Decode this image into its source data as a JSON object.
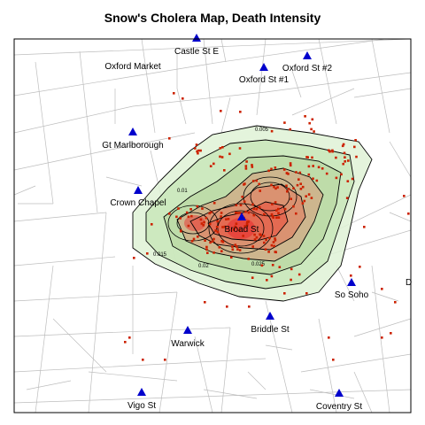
{
  "title": "Snow's Cholera Map, Death Intensity",
  "colors": {
    "street": "#bdbdbd",
    "frame": "#000000",
    "pump": "#0000cc",
    "death": "#cc2200",
    "contour": "#000000",
    "density_low": "#dff2d6",
    "density_high": "#e8403a"
  },
  "pump_icon": "triangle-icon",
  "pumps": [
    {
      "name": "Oxford Market",
      "label": "Oxford Market"
    },
    {
      "name": "Castle St E",
      "label": "Castle St E"
    },
    {
      "name": "Oxford St #1",
      "label": "Oxford St #1"
    },
    {
      "name": "Oxford St #2",
      "label": "Oxford St #2"
    },
    {
      "name": "Gt Marlborough",
      "label": "Gt Marlborough"
    },
    {
      "name": "Crown Chapel",
      "label": "Crown Chapel"
    },
    {
      "name": "Broad St",
      "label": "Broad St"
    },
    {
      "name": "So Soho",
      "label": "So Soho"
    },
    {
      "name": "Dean St",
      "label": "D"
    },
    {
      "name": "Briddle St",
      "label": "Briddle St"
    },
    {
      "name": "Warwick",
      "label": "Warwick"
    },
    {
      "name": "Vigo St",
      "label": "Vigo St"
    },
    {
      "name": "Coventry St",
      "label": "Coventry St"
    }
  ],
  "contour_levels": [
    "0.005",
    "0.01",
    "0.015",
    "0.02",
    "0.025"
  ]
}
